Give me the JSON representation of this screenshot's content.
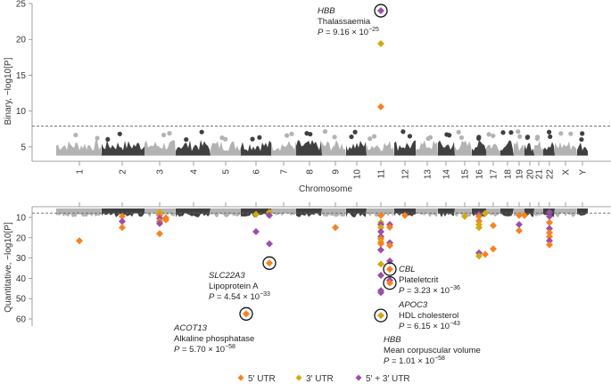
{
  "chart_data": {
    "type": "scatter",
    "subtype": "manhattan",
    "colors": {
      "5p_utr": "#f58220",
      "3p_utr": "#d4a90f",
      "5p_3p_utr": "#9b4fa8",
      "chrom_light": "#b3b3b3",
      "chrom_dark": "#404040",
      "axis": "#888888",
      "threshold": "#666666"
    },
    "chromosomes": [
      "1",
      "2",
      "3",
      "4",
      "5",
      "6",
      "7",
      "8",
      "9",
      "10",
      "11",
      "12",
      "13",
      "14",
      "15",
      "16",
      "17",
      "18",
      "19",
      "20",
      "21",
      "22",
      "X",
      "Y"
    ],
    "chromosome_positions": [
      0.5,
      1.5,
      2.5,
      3.5,
      4.5,
      5.5,
      6.5,
      7.5,
      8.5,
      9.5,
      10.5,
      11.5,
      12.5,
      13.5,
      14.5,
      15.5,
      16.5,
      17.5,
      18.5,
      19.5,
      20.5,
      21.5,
      22.5,
      23.5
    ],
    "xlabel": "Chromosome",
    "top_panel": {
      "ylabel": "Binary, −log10[P]",
      "ylim": [
        3,
        25
      ],
      "yticks": [
        5,
        10,
        15,
        20,
        25
      ],
      "threshold": 7.9,
      "points": [
        {
          "chrom": "11",
          "y": 24.0,
          "type": "5p_3p_utr",
          "circled": true
        },
        {
          "chrom": "11",
          "y": 19.4,
          "type": "3p_utr"
        },
        {
          "chrom": "11",
          "y": 10.6,
          "type": "5p_utr"
        }
      ],
      "annotations": [
        {
          "gene": "HBB",
          "trait": "Thalassaemia",
          "p_mantissa": "P = 9.16 × 10",
          "p_exp": "−25"
        }
      ]
    },
    "bottom_panel": {
      "ylabel": "Quantitative, −log10[P]",
      "ylim": [
        1,
        62
      ],
      "yticks": [
        10,
        20,
        30,
        40,
        50,
        60
      ],
      "inverted": true,
      "threshold": 7.9,
      "points": [
        {
          "chrom": "1",
          "y": 21.5,
          "type": "5p_utr"
        },
        {
          "chrom": "2",
          "y": 9.5,
          "type": "5p_utr"
        },
        {
          "chrom": "2",
          "y": 12,
          "type": "5p_3p_utr"
        },
        {
          "chrom": "2",
          "y": 15,
          "type": "5p_utr"
        },
        {
          "chrom": "3",
          "y": 7.5,
          "type": "3p_utr"
        },
        {
          "chrom": "3",
          "y": 9,
          "type": "5p_utr"
        },
        {
          "chrom": "3",
          "y": 10.5,
          "type": "5p_3p_utr"
        },
        {
          "chrom": "3",
          "y": 12,
          "type": "5p_utr"
        },
        {
          "chrom": "3",
          "y": 13,
          "type": "5p_3p_utr"
        },
        {
          "chrom": "3",
          "y": 18,
          "type": "5p_utr"
        },
        {
          "chrom": "3b",
          "y": 10.2,
          "type": "5p_utr"
        },
        {
          "chrom": "3b",
          "y": 11.2,
          "type": "5p_utr"
        },
        {
          "chrom": "6",
          "y": 8.5,
          "type": "3p_utr"
        },
        {
          "chrom": "6",
          "y": 17,
          "type": "5p_3p_utr"
        },
        {
          "chrom": "6b",
          "y": 7.5,
          "type": "3p_utr"
        },
        {
          "chrom": "6b",
          "y": 9,
          "type": "5p_3p_utr"
        },
        {
          "chrom": "6b",
          "y": 23,
          "type": "5p_3p_utr"
        },
        {
          "chrom": "6b",
          "y": 32.5,
          "type": "5p_utr",
          "circled": true
        },
        {
          "chrom": "6a",
          "y": 57.5,
          "type": "5p_utr",
          "circled": true
        },
        {
          "chrom": "9",
          "y": 15,
          "type": "5p_utr"
        },
        {
          "chrom": "11",
          "y": 9,
          "type": "5p_utr"
        },
        {
          "chrom": "11",
          "y": 12.5,
          "type": "3p_utr"
        },
        {
          "chrom": "11",
          "y": 13.5,
          "type": "5p_3p_utr"
        },
        {
          "chrom": "11",
          "y": 15,
          "type": "3p_utr"
        },
        {
          "chrom": "11",
          "y": 17,
          "type": "5p_3p_utr"
        },
        {
          "chrom": "11",
          "y": 19.5,
          "type": "5p_3p_utr"
        },
        {
          "chrom": "11",
          "y": 20.5,
          "type": "5p_utr"
        },
        {
          "chrom": "11",
          "y": 22,
          "type": "3p_utr"
        },
        {
          "chrom": "11",
          "y": 23,
          "type": "5p_utr"
        },
        {
          "chrom": "11",
          "y": 26,
          "type": "5p_3p_utr"
        },
        {
          "chrom": "11",
          "y": 33,
          "type": "3p_utr"
        },
        {
          "chrom": "11",
          "y": 38.5,
          "type": "5p_3p_utr"
        },
        {
          "chrom": "11",
          "y": 46,
          "type": "5p_3p_utr"
        },
        {
          "chrom": "11",
          "y": 47,
          "type": "5p_3p_utr"
        },
        {
          "chrom": "11",
          "y": 58.3,
          "type": "3p_utr",
          "circled": true
        },
        {
          "chrom": "11b",
          "y": 13.5,
          "type": "5p_3p_utr"
        },
        {
          "chrom": "11b",
          "y": 14.8,
          "type": "5p_utr"
        },
        {
          "chrom": "11b",
          "y": 22.5,
          "type": "5p_3p_utr"
        },
        {
          "chrom": "11b",
          "y": 23.8,
          "type": "5p_utr"
        },
        {
          "chrom": "11b",
          "y": 31.5,
          "type": "5p_3p_utr"
        },
        {
          "chrom": "11b",
          "y": 35.5,
          "type": "5p_utr",
          "circled": true
        },
        {
          "chrom": "11b",
          "y": 41,
          "type": "5p_3p_utr"
        },
        {
          "chrom": "11b",
          "y": 42.3,
          "type": "5p_utr",
          "circled": true
        },
        {
          "chrom": "12",
          "y": 9,
          "type": "5p_utr"
        },
        {
          "chrom": "15",
          "y": 9.5,
          "type": "3p_utr"
        },
        {
          "chrom": "16",
          "y": 8.5,
          "type": "5p_3p_utr"
        },
        {
          "chrom": "16",
          "y": 9.5,
          "type": "5p_utr"
        },
        {
          "chrom": "16",
          "y": 11.8,
          "type": "5p_utr"
        },
        {
          "chrom": "16",
          "y": 13.5,
          "type": "3p_utr"
        },
        {
          "chrom": "16",
          "y": 15,
          "type": "3p_utr"
        },
        {
          "chrom": "16",
          "y": 27.5,
          "type": "5p_3p_utr"
        },
        {
          "chrom": "16",
          "y": 29,
          "type": "3p_utr"
        },
        {
          "chrom": "16b",
          "y": 8,
          "type": "3p_utr"
        },
        {
          "chrom": "16b",
          "y": 28.2,
          "type": "5p_utr"
        },
        {
          "chrom": "17",
          "y": 14,
          "type": "5p_utr"
        },
        {
          "chrom": "17",
          "y": 25.5,
          "type": "5p_utr"
        },
        {
          "chrom": "19",
          "y": 9,
          "type": "5p_utr"
        },
        {
          "chrom": "19",
          "y": 13.5,
          "type": "5p_3p_utr"
        },
        {
          "chrom": "19",
          "y": 16.5,
          "type": "5p_utr"
        },
        {
          "chrom": "19b",
          "y": 9,
          "type": "5p_utr"
        },
        {
          "chrom": "22",
          "y": 7.5,
          "type": "5p_3p_utr"
        },
        {
          "chrom": "22",
          "y": 9.5,
          "type": "5p_3p_utr"
        },
        {
          "chrom": "22",
          "y": 12.5,
          "type": "5p_utr"
        },
        {
          "chrom": "22",
          "y": 15.5,
          "type": "5p_3p_utr"
        },
        {
          "chrom": "22",
          "y": 17.5,
          "type": "5p_utr"
        },
        {
          "chrom": "22",
          "y": 19.5,
          "type": "5p_utr"
        },
        {
          "chrom": "22",
          "y": 21.5,
          "type": "5p_3p_utr"
        },
        {
          "chrom": "22",
          "y": 23.5,
          "type": "5p_utr"
        }
      ],
      "annotations": [
        {
          "id": "slc22a3",
          "gene": "SLC22A3",
          "trait": "Lipoprotein A",
          "p_mantissa": "P = 4.54 × 10",
          "p_exp": "−33"
        },
        {
          "id": "acot13",
          "gene": "ACOT13",
          "trait": "Alkaline phosphatase",
          "p_mantissa": "P = 5.70 × 10",
          "p_exp": "−58"
        },
        {
          "id": "cbl",
          "gene": "CBL",
          "trait": "Plateletcrit",
          "p_mantissa": "P = 3.23 × 10",
          "p_exp": "−36"
        },
        {
          "id": "apoc3",
          "gene": "APOC3",
          "trait": "HDL cholesterol",
          "p_mantissa": "P = 6.15 × 10",
          "p_exp": "−43"
        },
        {
          "id": "hbb",
          "gene": "HBB",
          "trait": "Mean corpuscular volume",
          "p_mantissa": "P =  1.01 × 10",
          "p_exp": "−58"
        }
      ]
    },
    "legend": {
      "placement": "bottom-center",
      "entries": [
        {
          "key": "5p_utr",
          "label": "5′ UTR"
        },
        {
          "key": "3p_utr",
          "label": "3′ UTR"
        },
        {
          "key": "5p_3p_utr",
          "label": "5′ + 3′ UTR"
        }
      ]
    }
  }
}
